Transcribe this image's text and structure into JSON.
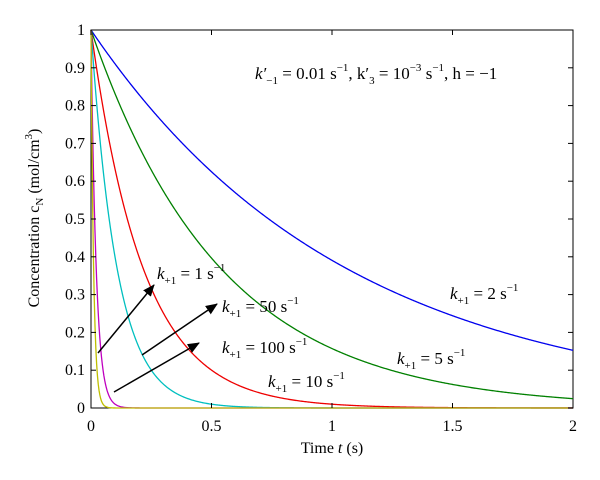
{
  "chart_data": {
    "type": "line",
    "xlabel": "Time t (s)",
    "ylabel": "Concentration c_N (mol/cm³)",
    "ylabel_parts": {
      "main": "Concentration c",
      "sub": "N",
      "rest": " (mol/cm",
      "sup": "3",
      "close": ")"
    },
    "xlim": [
      0,
      2
    ],
    "ylim": [
      0,
      1
    ],
    "xticks": [
      0,
      0.5,
      1,
      1.5,
      2
    ],
    "xtick_labels": [
      "0",
      "0.5",
      "1",
      "1.5",
      "2"
    ],
    "yticks": [
      0,
      0.1,
      0.2,
      0.3,
      0.4,
      0.5,
      0.6,
      0.7,
      0.8,
      0.9,
      1
    ],
    "ytick_labels": [
      "0",
      "0.1",
      "0.2",
      "0.3",
      "0.4",
      "0.5",
      "0.6",
      "0.7",
      "0.8",
      "0.9",
      "1"
    ],
    "grid": false,
    "series": [
      {
        "label": "k+1 = 1 s⁻¹",
        "rate": 0.94,
        "color": "#0000ee"
      },
      {
        "label": "k+1 = 2 s⁻¹",
        "rate": 1.85,
        "color": "#008000"
      },
      {
        "label": "k+1 = 5 s⁻¹",
        "rate": 4.6,
        "color": "#ee0000"
      },
      {
        "label": "k+1 = 10 s⁻¹",
        "rate": 9.2,
        "color": "#00bfbf"
      },
      {
        "label": "k+1 = 50 s⁻¹",
        "rate": 46,
        "color": "#bf00bf"
      },
      {
        "label": "k+1 = 100 s⁻¹",
        "rate": 92,
        "color": "#bfbf00"
      }
    ],
    "annotations": {
      "params": {
        "a": "k′",
        "a_sub": "−1",
        "b": " = 0.01 s",
        "b_sup": "−1",
        "c": ", k′",
        "c_sub": "3",
        "d": " = 10",
        "d_sup": "−3",
        "e": " s",
        "e_sup": "−1",
        "f": ", h = −1"
      },
      "labels": [
        {
          "k": "k",
          "sub": "+1",
          "text": " = 1 s",
          "sup": "−1"
        },
        {
          "k": "k",
          "sub": "+1",
          "text": " = 50 s",
          "sup": "−1"
        },
        {
          "k": "k",
          "sub": "+1",
          "text": " = 100 s",
          "sup": "−1"
        },
        {
          "k": "k",
          "sub": "+1",
          "text": " = 10 s",
          "sup": "−1"
        },
        {
          "k": "k",
          "sub": "+1",
          "text": " = 5 s",
          "sup": "−1"
        },
        {
          "k": "k",
          "sub": "+1",
          "text": " = 2 s",
          "sup": "−1"
        }
      ]
    }
  }
}
